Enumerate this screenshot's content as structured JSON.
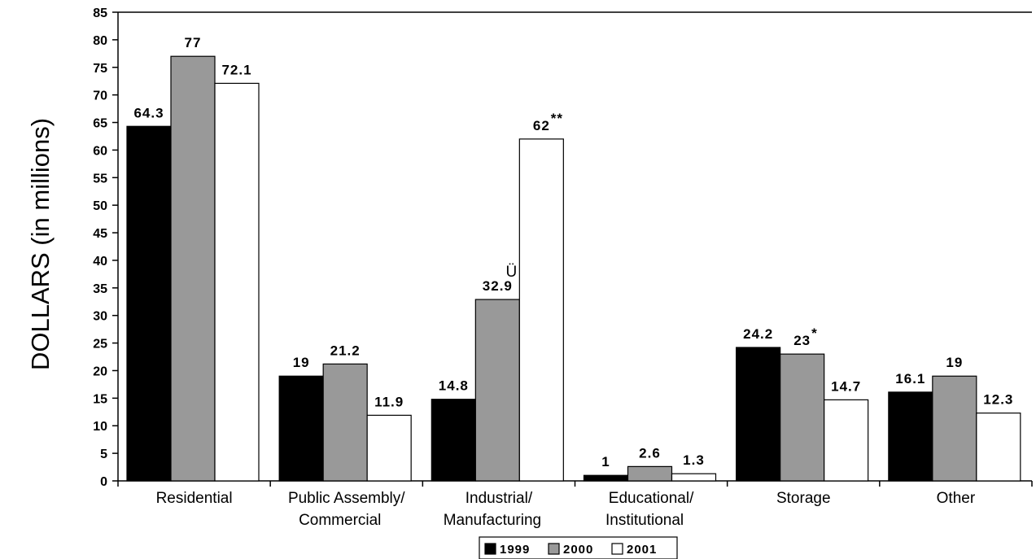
{
  "chart_data": {
    "type": "bar",
    "ylabel": "DOLLARS (in millions)",
    "xlabel": "",
    "title": "",
    "ylim": [
      0,
      85
    ],
    "y_ticks": [
      0,
      5,
      10,
      15,
      20,
      25,
      30,
      35,
      40,
      45,
      50,
      55,
      60,
      65,
      70,
      75,
      80,
      85
    ],
    "grid": false,
    "legend_position": "bottom-center",
    "categories": [
      [
        "Residential"
      ],
      [
        "Public Assembly/",
        "Commercial"
      ],
      [
        "Industrial/",
        "Manufacturing"
      ],
      [
        "Educational/",
        "Institutional"
      ],
      [
        "Storage"
      ],
      [
        "Other"
      ]
    ],
    "series": [
      {
        "name": "1999",
        "color": "#000000",
        "values": [
          64.3,
          19,
          14.8,
          1,
          24.2,
          16.1
        ]
      },
      {
        "name": "2000",
        "color": "#999999",
        "values": [
          77,
          21.2,
          32.9,
          2.6,
          23,
          19
        ]
      },
      {
        "name": "2001",
        "color": "#ffffff",
        "values": [
          72.1,
          11.9,
          62,
          1.3,
          14.7,
          12.3
        ]
      }
    ],
    "value_labels": [
      [
        "64.3",
        "19",
        "14.8",
        "1",
        "24.2",
        "16.1"
      ],
      [
        "77",
        "21.2",
        "32.9",
        "2.6",
        "23",
        "19"
      ],
      [
        "72.1",
        "11.9",
        "62",
        "1.3",
        "14.7",
        "12.3"
      ]
    ],
    "annotations": [
      {
        "series": 2,
        "category": 2,
        "text": "**"
      },
      {
        "series": 1,
        "category": 4,
        "text": "*"
      },
      {
        "series": 1,
        "category": 2,
        "text": "Ü"
      }
    ]
  }
}
